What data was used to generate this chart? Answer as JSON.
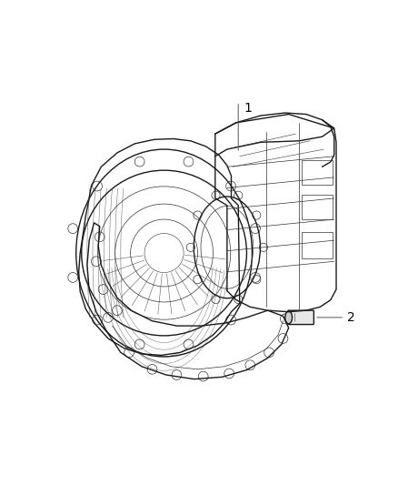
{
  "background_color": "#ffffff",
  "line_color_main": "#1a1a1a",
  "line_color_thin": "#333333",
  "label1": "1",
  "label2": "2",
  "fig_width": 4.38,
  "fig_height": 5.33,
  "dpi": 100,
  "label_fontsize": 10,
  "text_color": "#000000",
  "leader_color": "#555555",
  "lw_main": 1.0,
  "lw_thin": 0.5,
  "lw_detail": 0.4
}
